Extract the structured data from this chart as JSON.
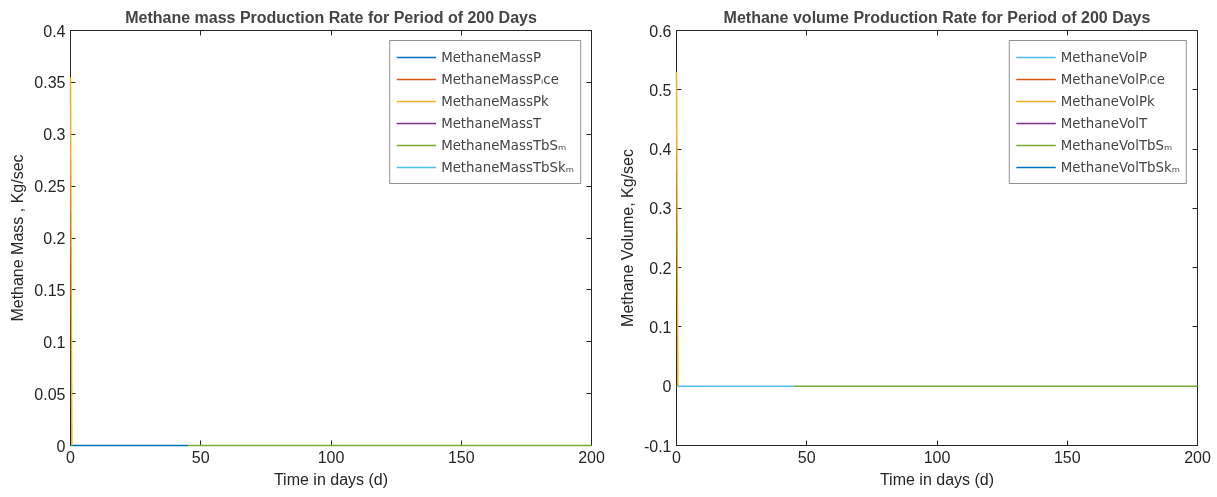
{
  "chart_data": [
    {
      "type": "line",
      "title": "Methane mass Production Rate for Period of 200 Days",
      "xlabel": "Time in days (d)",
      "ylabel": "Methane Mass , Kg/sec",
      "xlim": [
        0,
        200
      ],
      "ylim": [
        0,
        0.4
      ],
      "xticks": [
        0,
        50,
        100,
        150,
        200
      ],
      "yticks": [
        0,
        0.05,
        0.1,
        0.15,
        0.2,
        0.25,
        0.3,
        0.35,
        0.4
      ],
      "grid": false,
      "legend": "top right",
      "series": [
        {
          "name": "MethaneMassP",
          "color": "#0072bd",
          "x": [
            0,
            45
          ],
          "values": [
            0,
            0
          ]
        },
        {
          "name": "MethaneMassPᵢce",
          "color": "#d95319"
        },
        {
          "name": "MethaneMassPk",
          "color": "#edb120",
          "x": [
            0,
            0.5
          ],
          "values": [
            0.355,
            0
          ]
        },
        {
          "name": "MethaneMassT",
          "color": "#7e2f8e"
        },
        {
          "name": "MethaneMassTbSₘ",
          "color": "#77ac30",
          "x": [
            45,
            200
          ],
          "values": [
            0,
            0
          ]
        },
        {
          "name": "MethaneMassTbSkₘ",
          "color": "#4dbeee"
        }
      ]
    },
    {
      "type": "line",
      "title": "Methane volume Production Rate for Period of 200 Days",
      "xlabel": "Time in days (d)",
      "ylabel": "Methane Volume, Kg/sec",
      "xlim": [
        0,
        200
      ],
      "ylim": [
        -0.1,
        0.6
      ],
      "xticks": [
        0,
        50,
        100,
        150,
        200
      ],
      "yticks": [
        -0.1,
        0,
        0.1,
        0.2,
        0.3,
        0.4,
        0.5,
        0.6
      ],
      "grid": false,
      "legend": "top right",
      "series": [
        {
          "name": "MethaneVolP",
          "color": "#4dbeee",
          "x": [
            0,
            45
          ],
          "values": [
            0,
            0
          ]
        },
        {
          "name": "MethaneVolPᵢce",
          "color": "#d95319"
        },
        {
          "name": "MethaneVolPk",
          "color": "#edb120",
          "x": [
            0,
            0.5
          ],
          "values": [
            0.53,
            0
          ]
        },
        {
          "name": "MethaneVolT",
          "color": "#7e2f8e"
        },
        {
          "name": "MethaneVolTbSₘ",
          "color": "#77ac30",
          "x": [
            45,
            200
          ],
          "values": [
            0,
            0
          ]
        },
        {
          "name": "MethaneVolTbSkₘ",
          "color": "#0072bd"
        }
      ]
    }
  ]
}
